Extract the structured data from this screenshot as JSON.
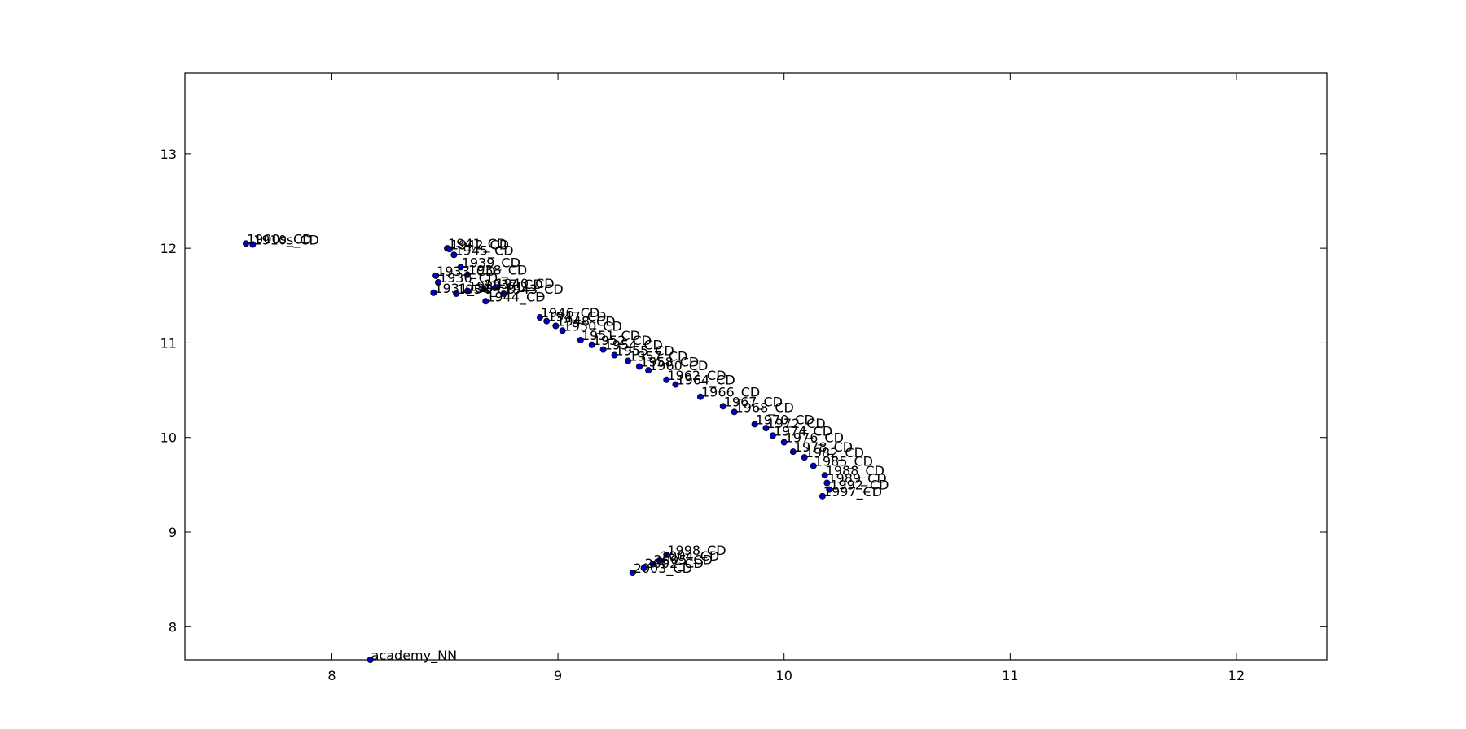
{
  "chart_data": {
    "type": "scatter",
    "title": "",
    "xlabel": "",
    "ylabel": "",
    "xlim": [
      7.35,
      12.4
    ],
    "ylim": [
      7.65,
      13.85
    ],
    "xticks": [
      8,
      9,
      10,
      11,
      12
    ],
    "yticks": [
      8,
      9,
      10,
      11,
      12,
      13
    ],
    "xtick_labels": [
      "8",
      "9",
      "10",
      "11",
      "12"
    ],
    "ytick_labels": [
      "8",
      "9",
      "10",
      "11",
      "12",
      "13"
    ],
    "grid": false,
    "legend": "none",
    "marker_color": "#0000bf",
    "points": [
      {
        "x": 7.62,
        "y": 12.05,
        "label": "1900s_CD"
      },
      {
        "x": 7.65,
        "y": 12.04,
        "label": "1910s_CD"
      },
      {
        "x": 8.51,
        "y": 12.0,
        "label": "1941_CD"
      },
      {
        "x": 8.52,
        "y": 11.99,
        "label": "1942_CD"
      },
      {
        "x": 8.54,
        "y": 11.93,
        "label": "1945_CD"
      },
      {
        "x": 8.57,
        "y": 11.8,
        "label": "1939_CD"
      },
      {
        "x": 8.6,
        "y": 11.72,
        "label": "1938_CD"
      },
      {
        "x": 8.46,
        "y": 11.71,
        "label": "1933_CD"
      },
      {
        "x": 8.47,
        "y": 11.64,
        "label": "1936_CD"
      },
      {
        "x": 8.45,
        "y": 11.53,
        "label": "1931_CD"
      },
      {
        "x": 8.55,
        "y": 11.52,
        "label": "1934_CD"
      },
      {
        "x": 8.6,
        "y": 11.55,
        "label": "1935_CD"
      },
      {
        "x": 8.67,
        "y": 11.57,
        "label": "1937_CD"
      },
      {
        "x": 8.72,
        "y": 11.58,
        "label": "1940_CD"
      },
      {
        "x": 8.76,
        "y": 11.52,
        "label": "1943_CD"
      },
      {
        "x": 8.68,
        "y": 11.44,
        "label": "1944_CD"
      },
      {
        "x": 8.92,
        "y": 11.27,
        "label": "1946_CD"
      },
      {
        "x": 8.95,
        "y": 11.23,
        "label": "1947_CD"
      },
      {
        "x": 8.99,
        "y": 11.18,
        "label": "1948_CD"
      },
      {
        "x": 9.02,
        "y": 11.13,
        "label": "1950_CD"
      },
      {
        "x": 9.1,
        "y": 11.03,
        "label": "1951_CD"
      },
      {
        "x": 9.15,
        "y": 10.98,
        "label": "1952_CD"
      },
      {
        "x": 9.2,
        "y": 10.93,
        "label": "1954_CD"
      },
      {
        "x": 9.25,
        "y": 10.87,
        "label": "1955_CD"
      },
      {
        "x": 9.31,
        "y": 10.81,
        "label": "1957_CD"
      },
      {
        "x": 9.36,
        "y": 10.75,
        "label": "1958_CD"
      },
      {
        "x": 9.4,
        "y": 10.71,
        "label": "1960_CD"
      },
      {
        "x": 9.48,
        "y": 10.61,
        "label": "1962_CD"
      },
      {
        "x": 9.52,
        "y": 10.56,
        "label": "1964_CD"
      },
      {
        "x": 9.63,
        "y": 10.43,
        "label": "1966_CD"
      },
      {
        "x": 9.73,
        "y": 10.33,
        "label": "1967_CD"
      },
      {
        "x": 9.78,
        "y": 10.27,
        "label": "1968_CD"
      },
      {
        "x": 9.87,
        "y": 10.14,
        "label": "1970_CD"
      },
      {
        "x": 9.92,
        "y": 10.1,
        "label": "1972_CD"
      },
      {
        "x": 9.95,
        "y": 10.02,
        "label": "1974_CD"
      },
      {
        "x": 10.0,
        "y": 9.95,
        "label": "1976_CD"
      },
      {
        "x": 10.04,
        "y": 9.85,
        "label": "1978_CD"
      },
      {
        "x": 10.09,
        "y": 9.79,
        "label": "1982_CD"
      },
      {
        "x": 10.13,
        "y": 9.7,
        "label": "1985_CD"
      },
      {
        "x": 10.18,
        "y": 9.6,
        "label": "1988_CD"
      },
      {
        "x": 10.19,
        "y": 9.52,
        "label": "1989_CD"
      },
      {
        "x": 10.2,
        "y": 9.45,
        "label": "1992_CD"
      },
      {
        "x": 10.17,
        "y": 9.38,
        "label": "1997_CD"
      },
      {
        "x": 9.48,
        "y": 8.76,
        "label": "1998_CD"
      },
      {
        "x": 9.45,
        "y": 8.7,
        "label": "2004_CD"
      },
      {
        "x": 9.42,
        "y": 8.66,
        "label": "2005_CD"
      },
      {
        "x": 9.38,
        "y": 8.62,
        "label": "2002_CD"
      },
      {
        "x": 9.33,
        "y": 8.57,
        "label": "2003_CD"
      },
      {
        "x": 8.17,
        "y": 7.65,
        "label": "academy_NN"
      }
    ]
  }
}
